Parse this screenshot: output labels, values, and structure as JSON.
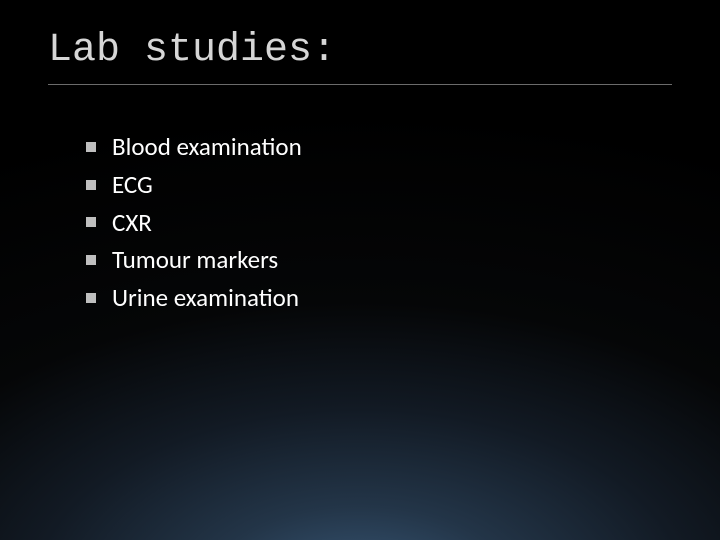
{
  "title": "Lab studies:",
  "title_color": "#d6d6d6",
  "title_fontsize": 40,
  "underline_color": "#6b6b6b",
  "bullet_color": "#bfbfbf",
  "item_color": "#ffffff",
  "item_fontsize": 25,
  "items": [
    "Blood examination",
    "ECG",
    "CXR",
    "Tumour markers",
    "Urine examination"
  ],
  "background": {
    "gradient_stops": [
      "#3a5a7a",
      "#233548",
      "#121a24",
      "#050607",
      "#000000"
    ]
  }
}
